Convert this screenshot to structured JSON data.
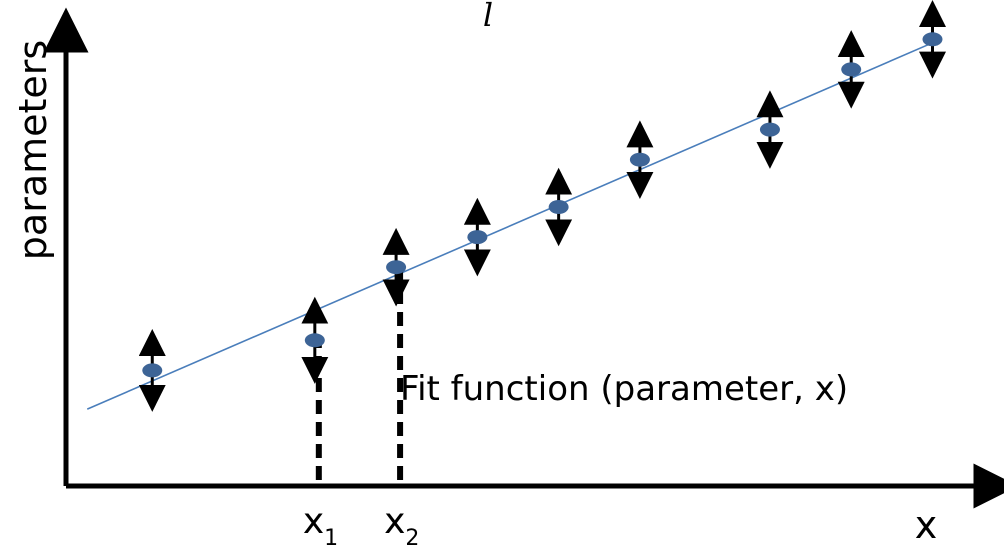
{
  "chart_data": {
    "type": "scatter",
    "title": "l",
    "xlabel": "x",
    "ylabel": "parameters",
    "annotation": "Fit function (parameter, x)",
    "x_markers": [
      {
        "label": "x",
        "sub": "1",
        "x": 3.0
      },
      {
        "label": "x",
        "sub": "2",
        "x": 4.0
      }
    ],
    "xlim": [
      0,
      11
    ],
    "ylim": [
      0,
      10
    ],
    "points": [
      {
        "x": 1.0,
        "y": 2.2,
        "err": 1.3
      },
      {
        "x": 3.0,
        "y": 2.9,
        "err": 1.4
      },
      {
        "x": 4.0,
        "y": 4.6,
        "err": 1.2
      },
      {
        "x": 5.0,
        "y": 5.3,
        "err": 1.2
      },
      {
        "x": 6.0,
        "y": 6.0,
        "err": 1.2
      },
      {
        "x": 7.0,
        "y": 7.1,
        "err": 1.2
      },
      {
        "x": 8.6,
        "y": 7.8,
        "err": 1.2
      },
      {
        "x": 9.6,
        "y": 9.2,
        "err": 1.2
      },
      {
        "x": 10.6,
        "y": 9.9,
        "err": 1.2
      }
    ],
    "fit": {
      "x1": 0.2,
      "y1": 1.3,
      "x2": 10.7,
      "y2": 9.9
    },
    "colors": {
      "point": "#3d6496",
      "fit": "#4a7ebb",
      "axis": "#000000"
    }
  }
}
